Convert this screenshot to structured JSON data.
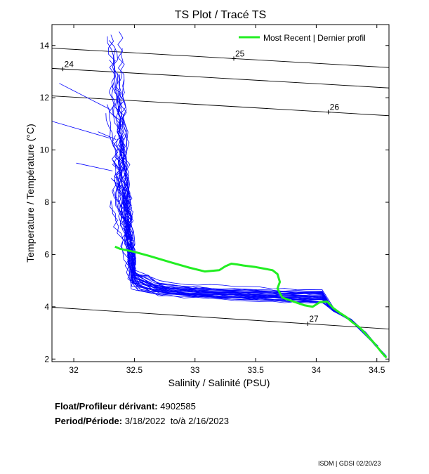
{
  "chart_data": {
    "type": "line",
    "title": "TS Plot / Tracé TS",
    "xlabel": "Salinity / Salinité (PSU)",
    "ylabel": "Temperature / Température (°C)",
    "xlim": [
      31.82,
      34.6
    ],
    "ylim": [
      1.9,
      14.8
    ],
    "xticks": [
      "32",
      "32.5",
      "33",
      "33.5",
      "34",
      "34.5"
    ],
    "yticks": [
      "2",
      "4",
      "6",
      "8",
      "10",
      "12",
      "14"
    ],
    "grid": false,
    "legend_position": "top-right",
    "legend": [
      "Most Recent | Dernier profil"
    ],
    "density_contours": [
      {
        "label": "24",
        "label_point": [
          31.91,
          13.1
        ]
      },
      {
        "label": "25",
        "label_point": [
          33.32,
          13.5
        ]
      },
      {
        "label": "26",
        "label_point": [
          34.1,
          11.45
        ]
      },
      {
        "label": "27",
        "label_point": [
          33.93,
          3.35
        ]
      }
    ],
    "historical_color": "#0000ff",
    "recent_color": "#22ee22",
    "most_recent_profile": {
      "salinity": [
        32.34,
        32.38,
        32.5,
        32.62,
        32.8,
        32.95,
        33.08,
        33.2,
        33.25,
        33.3,
        33.35,
        33.4,
        33.5,
        33.58,
        33.64,
        33.68,
        33.7,
        33.68,
        33.72,
        33.8,
        33.9,
        33.97,
        34.03,
        34.09,
        34.14,
        34.2,
        34.25,
        34.3,
        34.36,
        34.42,
        34.48,
        34.54,
        34.58
      ],
      "temperature": [
        6.3,
        6.22,
        6.1,
        5.95,
        5.7,
        5.5,
        5.35,
        5.4,
        5.55,
        5.65,
        5.62,
        5.58,
        5.52,
        5.45,
        5.4,
        5.25,
        4.95,
        4.7,
        4.35,
        4.22,
        4.06,
        4.0,
        4.18,
        4.2,
        3.95,
        3.75,
        3.6,
        3.4,
        3.2,
        2.9,
        2.6,
        2.25,
        2.05
      ]
    }
  },
  "info": {
    "float_label": "Float/Profileur dérivant:",
    "float_value": "4902585",
    "period_label": "Period/Période:",
    "period_start": "3/18/2022",
    "period_to": "to/à",
    "period_end": "2/16/2023"
  },
  "footer": "ISDM | GDSI 02/20/23"
}
